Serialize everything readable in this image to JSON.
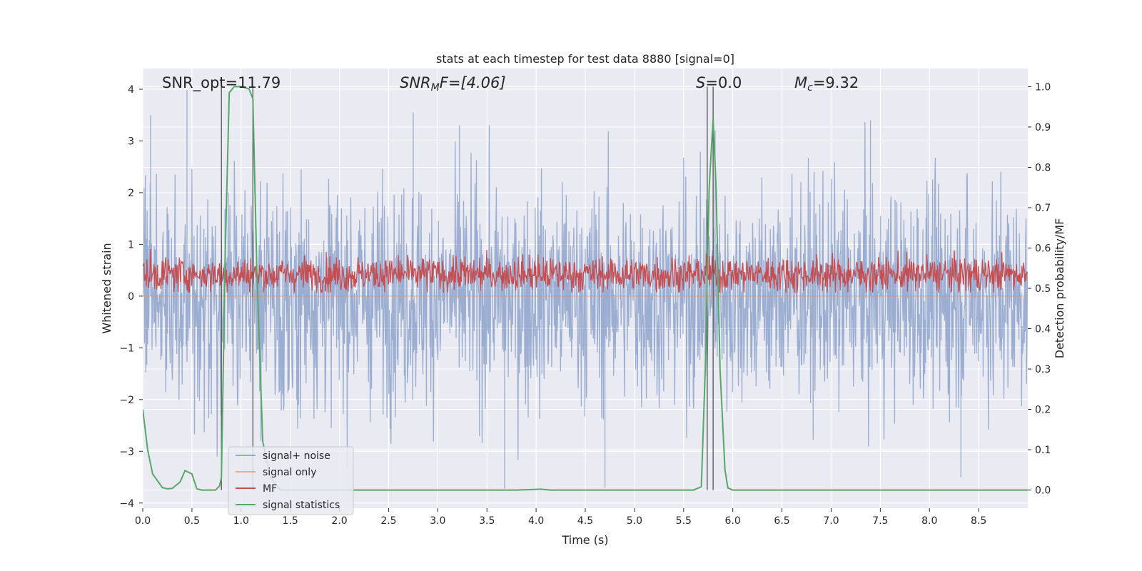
{
  "chart_data": {
    "type": "line",
    "title": "stats at each timestep for test data 8880 [signal=0]",
    "xlabel": "Time (s)",
    "ylabel": "Whitened strain",
    "y2label": "Detection probability/MF",
    "xlim": [
      0.0,
      9.0
    ],
    "ylim": [
      -4.1,
      4.4
    ],
    "y2lim": [
      -0.045,
      1.045
    ],
    "xticks": [
      0.0,
      0.5,
      1.0,
      1.5,
      2.0,
      2.5,
      3.0,
      3.5,
      4.0,
      4.5,
      5.0,
      5.5,
      6.0,
      6.5,
      7.0,
      7.5,
      8.0,
      8.5
    ],
    "xtick_labels": [
      "0.0",
      "0.5",
      "1.0",
      "1.5",
      "2.0",
      "2.5",
      "3.0",
      "3.5",
      "4.0",
      "4.5",
      "5.0",
      "5.5",
      "6.0",
      "6.5",
      "7.0",
      "7.5",
      "8.0",
      "8.5"
    ],
    "yticks": [
      4,
      3,
      2,
      1,
      0,
      -1,
      -2,
      -3,
      -4
    ],
    "ytick_labels": [
      "4",
      "3",
      "2",
      "1",
      "0",
      "−1",
      "−2",
      "−3",
      "−4"
    ],
    "y2ticks": [
      1.0,
      0.9,
      0.8,
      0.7,
      0.6,
      0.5,
      0.4,
      0.3,
      0.2,
      0.1,
      0.0
    ],
    "y2tick_labels": [
      "1.0",
      "0.9",
      "0.8",
      "0.7",
      "0.6",
      "0.5",
      "0.4",
      "0.3",
      "0.2",
      "0.1",
      "0.0"
    ],
    "annotations": {
      "snr_opt": "SNR_opt=11.79",
      "snr_mf_name": "SNR",
      "snr_mf_sub": "M",
      "snr_mf_rest": "F=[4.06]",
      "s_name": "S",
      "s_rest": "=0.0",
      "mc_name": "M",
      "mc_sub": "c",
      "mc_rest": "=9.32"
    },
    "vertical_lines_x": [
      0.8,
      1.12,
      5.74,
      5.8
    ],
    "legend": [
      "signal+ noise",
      "signal only",
      "MF",
      "signal statistics"
    ],
    "series": [
      {
        "name": "signal+ noise",
        "axis": "left",
        "color": "#4c72b0",
        "alpha": 0.5,
        "description": "dense whitened noise, amplitude ~ ±3 with peaks to 4",
        "spike_peaks": [
          [
            0.45,
            3.98
          ],
          [
            0.08,
            3.5
          ],
          [
            2.75,
            3.55
          ],
          [
            3.22,
            3.3
          ],
          [
            4.7,
            -3.7
          ],
          [
            3.68,
            -3.72
          ],
          [
            8.32,
            -3.5
          ],
          [
            7.4,
            3.4
          ],
          [
            5.82,
            3.2
          ]
        ]
      },
      {
        "name": "signal only",
        "axis": "left",
        "color": "#dd8452",
        "values_note": "near zero"
      },
      {
        "name": "MF",
        "axis": "right",
        "color": "#c44e52",
        "description": "matched-filter output fluctuating between ~0.49 and ~0.6",
        "range": [
          0.49,
          0.6
        ]
      },
      {
        "name": "signal statistics",
        "axis": "right",
        "color": "#55a868",
        "x": [
          0.0,
          0.05,
          0.1,
          0.2,
          0.25,
          0.3,
          0.38,
          0.43,
          0.5,
          0.55,
          0.6,
          0.68,
          0.74,
          0.78,
          0.8,
          0.84,
          0.88,
          0.93,
          1.0,
          1.08,
          1.12,
          1.16,
          1.22,
          1.3,
          1.4,
          1.6,
          2.0,
          3.0,
          3.8,
          4.05,
          4.15,
          5.0,
          5.6,
          5.68,
          5.72,
          5.76,
          5.8,
          5.83,
          5.87,
          5.92,
          5.95,
          6.0,
          7.0,
          8.0,
          9.0
        ],
        "values": [
          0.2,
          0.1,
          0.04,
          0.006,
          0.003,
          0.004,
          0.02,
          0.048,
          0.04,
          0.003,
          0.0,
          0.0,
          0.0,
          0.01,
          0.03,
          0.6,
          0.985,
          1.0,
          1.0,
          0.995,
          0.97,
          0.55,
          0.12,
          0.03,
          0.0,
          0.0,
          0.0,
          0.0,
          0.0,
          0.002,
          0.0,
          0.0,
          0.0,
          0.008,
          0.3,
          0.75,
          0.92,
          0.75,
          0.3,
          0.05,
          0.005,
          0.0,
          0.0,
          0.0,
          0.0
        ]
      }
    ]
  }
}
